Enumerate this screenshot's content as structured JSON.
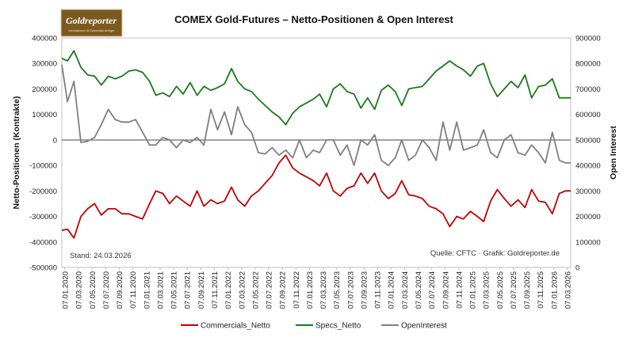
{
  "logo": {
    "text": "Goldreporter",
    "subtitle": "Informationen für Edelmetall-Anleger",
    "bg_color": "#7a5a1e"
  },
  "chart_data": {
    "type": "line",
    "title": "COMEX Gold-Futures – Netto-Positionen & Open Interest",
    "ylabel_left": "Netto-Positionen (Kontrakte)",
    "ylabel_right": "Open Interest",
    "ylim_left": [
      -500000,
      400000
    ],
    "ylim_right": [
      0,
      900000
    ],
    "yticks_left": [
      {
        "v": 400000,
        "label": "400000"
      },
      {
        "v": 300000,
        "label": "300000"
      },
      {
        "v": 200000,
        "label": "200000"
      },
      {
        "v": 100000,
        "label": "100000"
      },
      {
        "v": 0,
        "label": "0"
      },
      {
        "v": -100000,
        "label": "-100000"
      },
      {
        "v": -200000,
        "label": "-200000"
      },
      {
        "v": -300000,
        "label": "-300000"
      },
      {
        "v": -400000,
        "label": "-400000"
      },
      {
        "v": -500000,
        "label": "-500000"
      }
    ],
    "yticks_right": [
      {
        "v": 900000,
        "label": "900000"
      },
      {
        "v": 800000,
        "label": "800000"
      },
      {
        "v": 700000,
        "label": "700000"
      },
      {
        "v": 600000,
        "label": "600000"
      },
      {
        "v": 500000,
        "label": "500000"
      },
      {
        "v": 400000,
        "label": "400000"
      },
      {
        "v": 300000,
        "label": "300000"
      },
      {
        "v": 200000,
        "label": "200000"
      },
      {
        "v": 100000,
        "label": "100000"
      },
      {
        "v": 0,
        "label": "0"
      }
    ],
    "x_range": [
      "2020-01-07",
      "2026-03-24"
    ],
    "xticks": [
      "07.01.2020",
      "07.03.2020",
      "07.05.2020",
      "07.07.2020",
      "07.09.2020",
      "07.11.2020",
      "07.01.2021",
      "07.03.2021",
      "07.05.2021",
      "07.07.2021",
      "07.09.2021",
      "07.11.2021",
      "07.01.2022",
      "07.03.2022",
      "07.05.2022",
      "07.07.2022",
      "07.09.2022",
      "07.11.2022",
      "07.01.2023",
      "07.03.2023",
      "07.05.2023",
      "07.07.2023",
      "07.09.2023",
      "07.11.2023",
      "07.01.2024",
      "07.03.2024",
      "07.05.2024",
      "07.07.2024",
      "07.09.2024",
      "07.11.2024",
      "07.01.2025",
      "07.03.2025",
      "07.05.2025",
      "07.07.2025",
      "07.09.2025",
      "07.11.2025",
      "07.01.2026",
      "07.03.2026"
    ],
    "series": [
      {
        "name": "Commercials_Netto",
        "axis": "left",
        "color": "#c00000",
        "x": [
          "2020-01-07",
          "2020-02-01",
          "2020-03-01",
          "2020-04-01",
          "2020-05-01",
          "2020-06-01",
          "2020-07-01",
          "2020-08-01",
          "2020-09-01",
          "2020-10-01",
          "2020-11-01",
          "2020-12-01",
          "2021-01-01",
          "2021-02-01",
          "2021-03-01",
          "2021-04-01",
          "2021-05-01",
          "2021-06-01",
          "2021-07-01",
          "2021-08-01",
          "2021-09-01",
          "2021-10-01",
          "2021-11-01",
          "2021-12-01",
          "2022-01-01",
          "2022-02-01",
          "2022-03-01",
          "2022-04-01",
          "2022-05-01",
          "2022-06-01",
          "2022-07-01",
          "2022-08-01",
          "2022-09-01",
          "2022-10-01",
          "2022-11-01",
          "2022-12-01",
          "2023-01-01",
          "2023-02-01",
          "2023-03-01",
          "2023-04-01",
          "2023-05-01",
          "2023-06-01",
          "2023-07-01",
          "2023-08-01",
          "2023-09-01",
          "2023-10-01",
          "2023-11-01",
          "2023-12-01",
          "2024-01-01",
          "2024-02-01",
          "2024-03-01",
          "2024-04-01",
          "2024-05-01",
          "2024-06-01",
          "2024-07-01",
          "2024-08-01",
          "2024-09-01",
          "2024-10-01",
          "2024-11-01",
          "2024-12-01",
          "2025-01-01",
          "2025-02-01",
          "2025-03-01",
          "2025-04-01",
          "2025-05-01",
          "2025-06-01",
          "2025-07-01",
          "2025-08-01",
          "2025-09-01",
          "2025-10-01",
          "2025-11-01",
          "2025-12-01",
          "2026-01-01",
          "2026-02-01",
          "2026-03-01",
          "2026-03-24"
        ],
        "values": [
          -355000,
          -350000,
          -385000,
          -300000,
          -270000,
          -250000,
          -295000,
          -270000,
          -270000,
          -290000,
          -290000,
          -300000,
          -310000,
          -250000,
          -200000,
          -210000,
          -250000,
          -220000,
          -240000,
          -260000,
          -200000,
          -260000,
          -235000,
          -250000,
          -240000,
          -185000,
          -235000,
          -260000,
          -220000,
          -200000,
          -170000,
          -140000,
          -90000,
          -60000,
          -110000,
          -130000,
          -145000,
          -160000,
          -180000,
          -130000,
          -200000,
          -220000,
          -190000,
          -180000,
          -130000,
          -170000,
          -130000,
          -200000,
          -230000,
          -210000,
          -160000,
          -215000,
          -220000,
          -230000,
          -260000,
          -270000,
          -290000,
          -340000,
          -300000,
          -310000,
          -280000,
          -300000,
          -320000,
          -240000,
          -195000,
          -230000,
          -260000,
          -235000,
          -265000,
          -195000,
          -240000,
          -245000,
          -290000,
          -210000,
          -200000,
          -200000
        ]
      },
      {
        "name": "Specs_Netto",
        "axis": "left",
        "color": "#1a7a1a",
        "x": [
          "2020-01-07",
          "2020-02-01",
          "2020-03-01",
          "2020-04-01",
          "2020-05-01",
          "2020-06-01",
          "2020-07-01",
          "2020-08-01",
          "2020-09-01",
          "2020-10-01",
          "2020-11-01",
          "2020-12-01",
          "2021-01-01",
          "2021-02-01",
          "2021-03-01",
          "2021-04-01",
          "2021-05-01",
          "2021-06-01",
          "2021-07-01",
          "2021-08-01",
          "2021-09-01",
          "2021-10-01",
          "2021-11-01",
          "2021-12-01",
          "2022-01-01",
          "2022-02-01",
          "2022-03-01",
          "2022-04-01",
          "2022-05-01",
          "2022-06-01",
          "2022-07-01",
          "2022-08-01",
          "2022-09-01",
          "2022-10-01",
          "2022-11-01",
          "2022-12-01",
          "2023-01-01",
          "2023-02-01",
          "2023-03-01",
          "2023-04-01",
          "2023-05-01",
          "2023-06-01",
          "2023-07-01",
          "2023-08-01",
          "2023-09-01",
          "2023-10-01",
          "2023-11-01",
          "2023-12-01",
          "2024-01-01",
          "2024-02-01",
          "2024-03-01",
          "2024-04-01",
          "2024-05-01",
          "2024-06-01",
          "2024-07-01",
          "2024-08-01",
          "2024-09-01",
          "2024-10-01",
          "2024-11-01",
          "2024-12-01",
          "2025-01-01",
          "2025-02-01",
          "2025-03-01",
          "2025-04-01",
          "2025-05-01",
          "2025-06-01",
          "2025-07-01",
          "2025-08-01",
          "2025-09-01",
          "2025-10-01",
          "2025-11-01",
          "2025-12-01",
          "2026-01-01",
          "2026-02-01",
          "2026-03-01",
          "2026-03-24"
        ],
        "values": [
          320000,
          310000,
          350000,
          285000,
          255000,
          250000,
          215000,
          250000,
          240000,
          250000,
          270000,
          275000,
          265000,
          230000,
          175000,
          185000,
          170000,
          210000,
          180000,
          225000,
          175000,
          210000,
          195000,
          205000,
          220000,
          280000,
          230000,
          200000,
          190000,
          160000,
          135000,
          110000,
          90000,
          60000,
          105000,
          130000,
          145000,
          160000,
          180000,
          130000,
          200000,
          220000,
          190000,
          180000,
          125000,
          165000,
          120000,
          195000,
          215000,
          190000,
          135000,
          200000,
          205000,
          210000,
          240000,
          270000,
          290000,
          310000,
          290000,
          275000,
          250000,
          290000,
          300000,
          220000,
          170000,
          200000,
          230000,
          205000,
          255000,
          165000,
          210000,
          215000,
          240000,
          165000,
          165000,
          165000
        ]
      },
      {
        "name": "OpenInterest",
        "axis": "right",
        "color": "#7f7f7f",
        "x": [
          "2020-01-07",
          "2020-02-01",
          "2020-03-01",
          "2020-04-01",
          "2020-05-01",
          "2020-06-01",
          "2020-07-01",
          "2020-08-01",
          "2020-09-01",
          "2020-10-01",
          "2020-11-01",
          "2020-12-01",
          "2021-01-01",
          "2021-02-01",
          "2021-03-01",
          "2021-04-01",
          "2021-05-01",
          "2021-06-01",
          "2021-07-01",
          "2021-08-01",
          "2021-09-01",
          "2021-10-01",
          "2021-11-01",
          "2021-12-01",
          "2022-01-01",
          "2022-02-01",
          "2022-03-01",
          "2022-04-01",
          "2022-05-01",
          "2022-06-01",
          "2022-07-01",
          "2022-08-01",
          "2022-09-01",
          "2022-10-01",
          "2022-11-01",
          "2022-12-01",
          "2023-01-01",
          "2023-02-01",
          "2023-03-01",
          "2023-04-01",
          "2023-05-01",
          "2023-06-01",
          "2023-07-01",
          "2023-08-01",
          "2023-09-01",
          "2023-10-01",
          "2023-11-01",
          "2023-12-01",
          "2024-01-01",
          "2024-02-01",
          "2024-03-01",
          "2024-04-01",
          "2024-05-01",
          "2024-06-01",
          "2024-07-01",
          "2024-08-01",
          "2024-09-01",
          "2024-10-01",
          "2024-11-01",
          "2024-12-01",
          "2025-01-01",
          "2025-02-01",
          "2025-03-01",
          "2025-04-01",
          "2025-05-01",
          "2025-06-01",
          "2025-07-01",
          "2025-08-01",
          "2025-09-01",
          "2025-10-01",
          "2025-11-01",
          "2025-12-01",
          "2026-01-01",
          "2026-02-01",
          "2026-03-01",
          "2026-03-24"
        ],
        "values": [
          795000,
          650000,
          730000,
          490000,
          495000,
          510000,
          560000,
          620000,
          580000,
          570000,
          570000,
          580000,
          530000,
          480000,
          480000,
          510000,
          500000,
          470000,
          500000,
          490000,
          510000,
          480000,
          620000,
          540000,
          610000,
          520000,
          630000,
          560000,
          530000,
          450000,
          445000,
          470000,
          440000,
          460000,
          430000,
          500000,
          430000,
          460000,
          450000,
          500000,
          500000,
          440000,
          480000,
          400000,
          500000,
          480000,
          520000,
          420000,
          400000,
          430000,
          500000,
          420000,
          440000,
          500000,
          470000,
          420000,
          570000,
          460000,
          570000,
          460000,
          470000,
          480000,
          540000,
          450000,
          430000,
          500000,
          520000,
          450000,
          440000,
          480000,
          450000,
          410000,
          530000,
          420000,
          410000,
          410000
        ]
      }
    ],
    "legend_position": "bottom-center",
    "grid": false,
    "annotations": {
      "left": "Stand: 24.03.2026",
      "right": "Quelle: CFTC · Grafik: Goldreporter.de"
    }
  }
}
